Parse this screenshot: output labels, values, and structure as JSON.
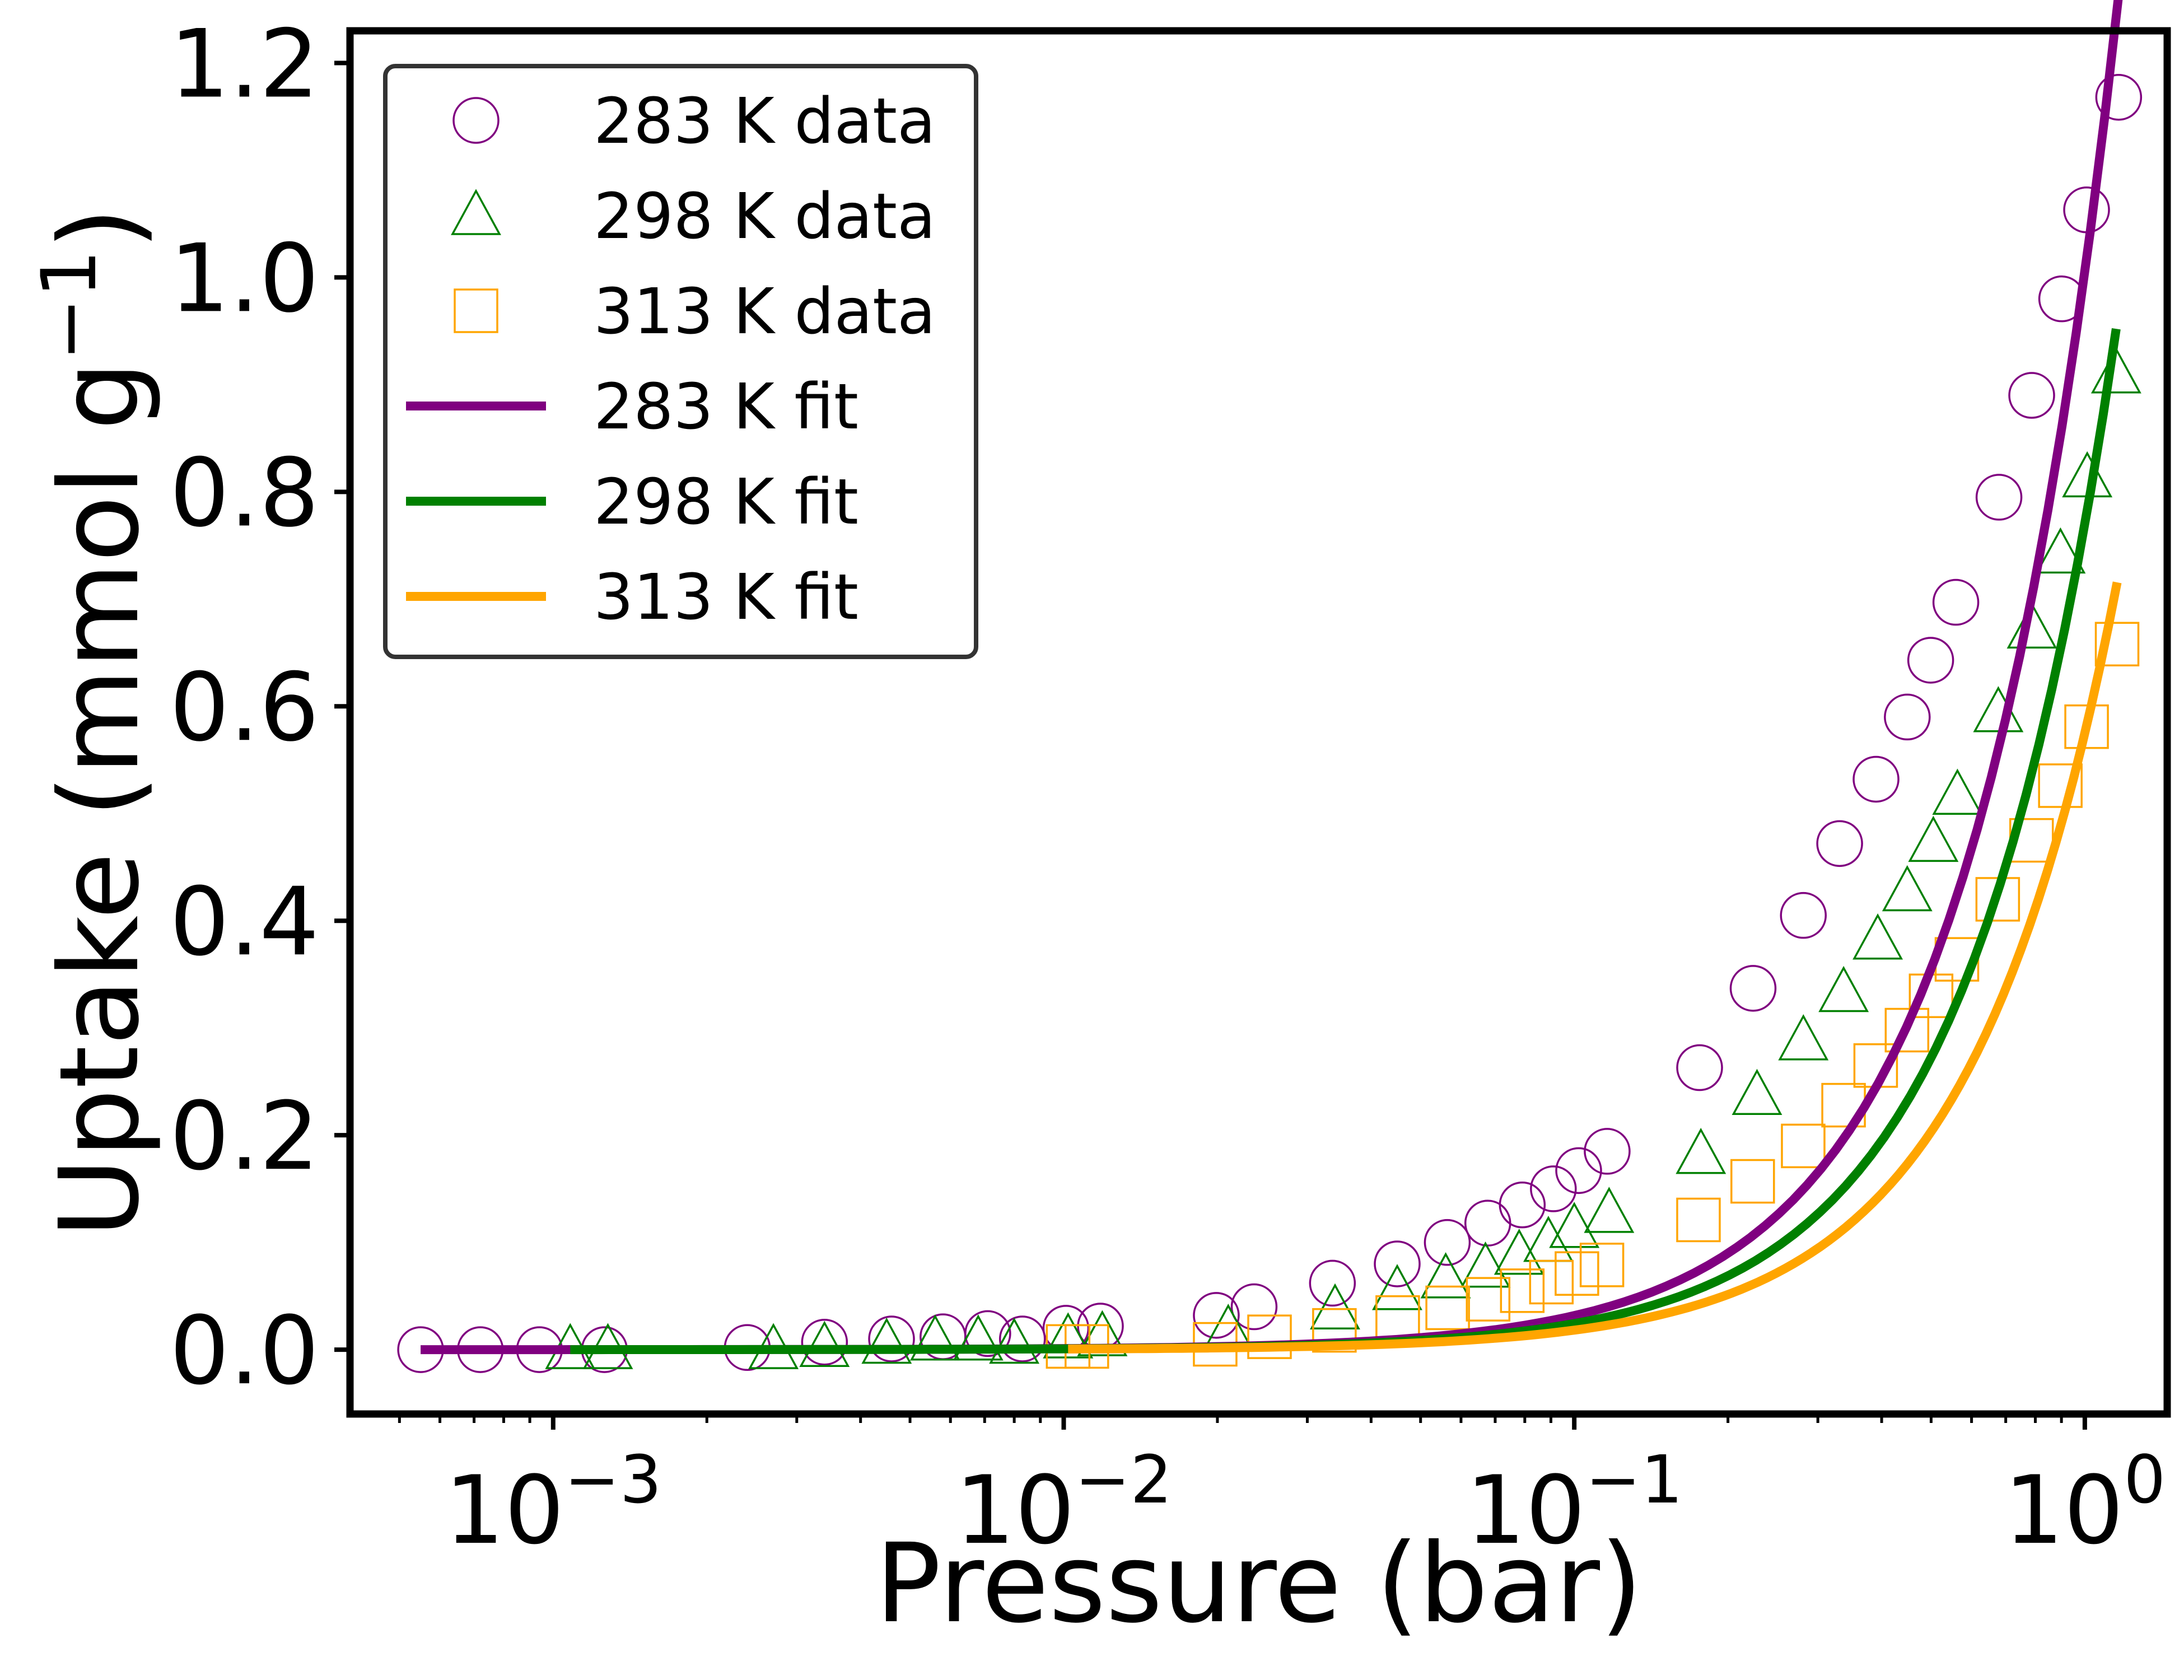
{
  "chart_data": {
    "type": "scatter",
    "xlabel": "Pressure (bar)",
    "ylabel": "Uptake (mmol g",
    "ylabel_sup": "−1",
    "ylabel_close": ")",
    "x_scale": "log",
    "xlim": [
      0.0004,
      1.45
    ],
    "ylim": [
      -0.06,
      1.23
    ],
    "x_ticks": [
      {
        "value": 0.001,
        "base": "10",
        "exp": "−3"
      },
      {
        "value": 0.01,
        "base": "10",
        "exp": "−2"
      },
      {
        "value": 0.1,
        "base": "10",
        "exp": "−1"
      },
      {
        "value": 1,
        "base": "10",
        "exp": "0"
      }
    ],
    "y_ticks": [
      {
        "value": 0.0,
        "label": "0.0"
      },
      {
        "value": 0.2,
        "label": "0.2"
      },
      {
        "value": 0.4,
        "label": "0.4"
      },
      {
        "value": 0.6,
        "label": "0.6"
      },
      {
        "value": 0.8,
        "label": "0.8"
      },
      {
        "value": 1.0,
        "label": "1.0"
      },
      {
        "value": 1.2,
        "label": "1.2"
      }
    ],
    "grid": false,
    "legend_position": "upper-left",
    "data_series": [
      {
        "name": "283 K data",
        "marker": "circle",
        "color": "#800080",
        "x": [
          0.00055,
          0.00072,
          0.00094,
          0.00126,
          0.0024,
          0.0034,
          0.0046,
          0.0058,
          0.0071,
          0.0083,
          0.0101,
          0.0118,
          0.0199,
          0.0236,
          0.0336,
          0.045,
          0.0564,
          0.0677,
          0.0791,
          0.091,
          0.102,
          0.116,
          0.176,
          0.224,
          0.281,
          0.331,
          0.39,
          0.449,
          0.499,
          0.559,
          0.679,
          0.787,
          0.901,
          1.008,
          1.165
        ],
        "y": [
          0.0,
          0.0,
          0.0,
          0.0,
          0.002,
          0.007,
          0.01,
          0.012,
          0.015,
          0.01,
          0.02,
          0.022,
          0.032,
          0.04,
          0.062,
          0.08,
          0.1,
          0.118,
          0.135,
          0.15,
          0.167,
          0.185,
          0.263,
          0.337,
          0.405,
          0.472,
          0.532,
          0.59,
          0.643,
          0.697,
          0.795,
          0.89,
          0.98,
          1.063,
          1.168
        ]
      },
      {
        "name": "298 K data",
        "marker": "triangle",
        "color": "#008000",
        "x": [
          0.00108,
          0.00128,
          0.0027,
          0.0034,
          0.0045,
          0.0056,
          0.0068,
          0.008,
          0.0102,
          0.0119,
          0.021,
          0.034,
          0.045,
          0.056,
          0.067,
          0.078,
          0.089,
          0.1,
          0.117,
          0.177,
          0.228,
          0.281,
          0.337,
          0.393,
          0.449,
          0.505,
          0.563,
          0.677,
          0.788,
          0.896,
          1.011,
          1.152
        ],
        "y": [
          0.0,
          0.0,
          0.0,
          0.002,
          0.005,
          0.008,
          0.008,
          0.005,
          0.01,
          0.012,
          0.018,
          0.037,
          0.055,
          0.066,
          0.076,
          0.088,
          0.1,
          0.113,
          0.127,
          0.182,
          0.237,
          0.288,
          0.333,
          0.382,
          0.427,
          0.473,
          0.517,
          0.594,
          0.672,
          0.742,
          0.813,
          0.91
        ]
      },
      {
        "name": "313 K data",
        "marker": "square",
        "color": "#FFA500",
        "x": [
          0.0102,
          0.0111,
          0.0198,
          0.0253,
          0.0339,
          0.0451,
          0.0565,
          0.0678,
          0.0791,
          0.0902,
          0.1012,
          0.1133,
          0.1751,
          0.2236,
          0.2808,
          0.3369,
          0.3894,
          0.4484,
          0.4999,
          0.5617,
          0.6752,
          0.7864,
          0.8955,
          1.0081,
          1.1567
        ],
        "y": [
          0.003,
          0.003,
          0.005,
          0.012,
          0.018,
          0.03,
          0.039,
          0.047,
          0.055,
          0.063,
          0.071,
          0.079,
          0.121,
          0.157,
          0.19,
          0.228,
          0.265,
          0.298,
          0.33,
          0.364,
          0.42,
          0.475,
          0.526,
          0.581,
          0.658
        ]
      }
    ],
    "fit_series": [
      {
        "name": "283 K fit",
        "color": "#800080",
        "x_range": [
          0.00055,
          1.165
        ],
        "k": 1.005
      },
      {
        "name": "298 K fit",
        "color": "#008000",
        "x_range": [
          0.00108,
          1.152
        ],
        "k": 0.77
      },
      {
        "name": "313 K fit",
        "color": "#FFA500",
        "x_range": [
          0.0102,
          1.157
        ],
        "k": 0.575
      }
    ]
  }
}
